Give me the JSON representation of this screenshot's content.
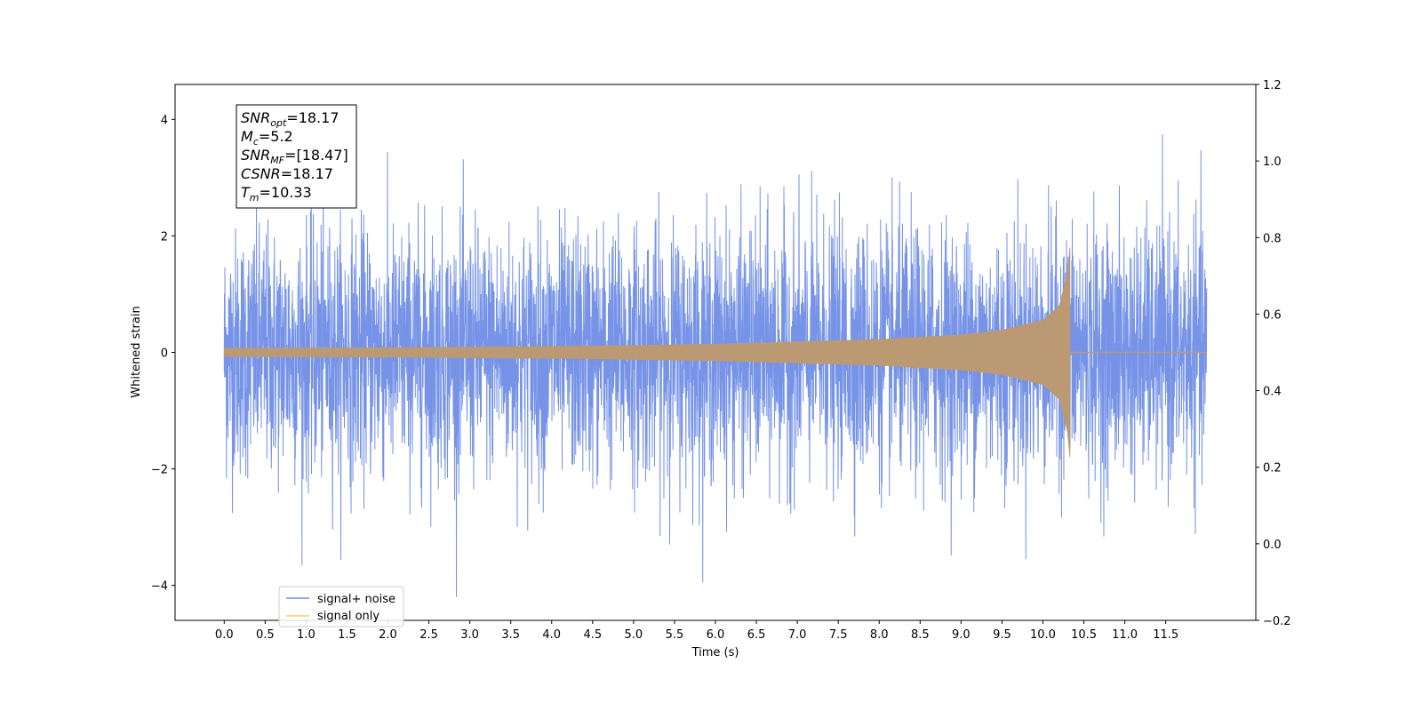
{
  "chart_data": {
    "type": "line",
    "xlabel": "Time (s)",
    "ylabel": "Whitened strain",
    "xlim": [
      -0.6,
      12.6
    ],
    "ylim": [
      -4.6,
      4.6
    ],
    "y2lim": [
      -0.2,
      1.2
    ],
    "x_ticks": [
      "0.0",
      "0.5",
      "1.0",
      "1.5",
      "2.0",
      "2.5",
      "3.0",
      "3.5",
      "4.0",
      "4.5",
      "5.0",
      "5.5",
      "6.0",
      "6.5",
      "7.0",
      "7.5",
      "8.0",
      "8.5",
      "9.0",
      "9.5",
      "10.0",
      "10.5",
      "11.0",
      "11.5"
    ],
    "x_tick_values": [
      0.0,
      0.5,
      1.0,
      1.5,
      2.0,
      2.5,
      3.0,
      3.5,
      4.0,
      4.5,
      5.0,
      5.5,
      6.0,
      6.5,
      7.0,
      7.5,
      8.0,
      8.5,
      9.0,
      9.5,
      10.0,
      10.5,
      11.0,
      11.5
    ],
    "y_ticks": [
      "−4",
      "−2",
      "0",
      "2",
      "4"
    ],
    "y_tick_values": [
      -4,
      -2,
      0,
      2,
      4
    ],
    "y2_ticks": [
      "−0.2",
      "0.0",
      "0.2",
      "0.4",
      "0.6",
      "0.8",
      "1.0",
      "1.2"
    ],
    "y2_tick_values": [
      -0.2,
      0.0,
      0.2,
      0.4,
      0.6,
      0.8,
      1.0,
      1.2
    ],
    "series": [
      {
        "name": "signal+ noise",
        "color": "#6f8de6",
        "x_range": [
          0.0,
          12.0
        ],
        "typical_amplitude": 2.3,
        "peak_max": 4.15,
        "peak_min": -4.2
      },
      {
        "name": "signal only",
        "color": "#ffc86e",
        "overlap_color": "#bb9a73",
        "x_range": [
          0.0,
          12.0
        ],
        "merger_time": 10.33,
        "envelope": [
          [
            0.0,
            0.07
          ],
          [
            2.0,
            0.08
          ],
          [
            4.0,
            0.1
          ],
          [
            6.0,
            0.14
          ],
          [
            8.0,
            0.22
          ],
          [
            9.0,
            0.3
          ],
          [
            9.5,
            0.38
          ],
          [
            10.0,
            0.55
          ],
          [
            10.2,
            0.8
          ],
          [
            10.3,
            1.35
          ],
          [
            10.33,
            1.8
          ]
        ],
        "post_merger_value": 0.0
      }
    ],
    "annotation": {
      "lines": [
        {
          "base": "SNR",
          "sub": "opt",
          "value": "=18.17"
        },
        {
          "base": "M",
          "sub": "c",
          "value": "=5.2"
        },
        {
          "base": "SNR",
          "sub": "MF",
          "value": "=[18.47]"
        },
        {
          "base": "CSNR",
          "sub": "",
          "value": "=18.17"
        },
        {
          "base": "T",
          "sub": "m",
          "value": "=10.33"
        }
      ]
    },
    "legend": {
      "placement": "lower-left",
      "entries": [
        "signal+ noise",
        "signal only"
      ]
    },
    "grid": false
  }
}
